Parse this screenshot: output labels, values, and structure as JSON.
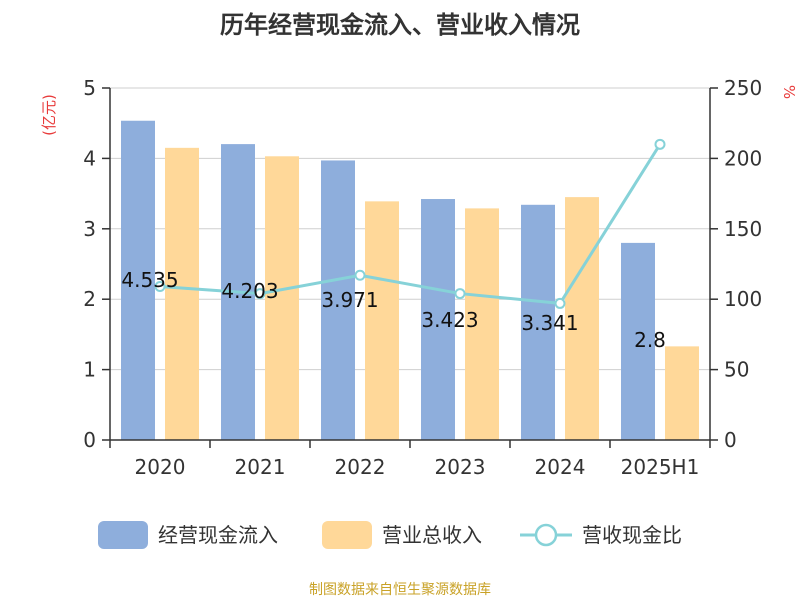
{
  "title": "历年经营现金流入、营业收入情况",
  "source": "制图数据来自恒生聚源数据库",
  "colors": {
    "cash_inflow": "#8eaedc",
    "revenue": "#ffd899",
    "ratio": "#86d2d8",
    "axis": "#333333",
    "grid": "#cfcfcf",
    "unit": "#e83a3a",
    "source": "#c9a227"
  },
  "chart_data": {
    "type": "bar",
    "categories": [
      "2020",
      "2021",
      "2022",
      "2023",
      "2024",
      "2025H1"
    ],
    "left_axis": {
      "unit": "(亿元)",
      "ylim": [
        0,
        5
      ],
      "ticks": [
        "0",
        "1",
        "2",
        "3",
        "4",
        "5"
      ]
    },
    "right_axis": {
      "unit": "%",
      "ylim": [
        0,
        250
      ],
      "ticks": [
        "0",
        "50",
        "100",
        "150",
        "200",
        "250"
      ]
    },
    "series": [
      {
        "name": "经营现金流入",
        "type": "bar",
        "axis": "left",
        "values": [
          4.535,
          4.203,
          3.971,
          3.423,
          3.341,
          2.8
        ],
        "labels": [
          "4.535",
          "4.203",
          "3.971",
          "3.423",
          "3.341",
          "2.8"
        ]
      },
      {
        "name": "营业总收入",
        "type": "bar",
        "axis": "left",
        "values": [
          4.15,
          4.03,
          3.39,
          3.29,
          3.45,
          1.33
        ]
      },
      {
        "name": "营收现金比",
        "type": "line",
        "axis": "right",
        "values": [
          109,
          104,
          117,
          104,
          97,
          210
        ]
      }
    ],
    "grid": true,
    "legend_position": "bottom"
  }
}
